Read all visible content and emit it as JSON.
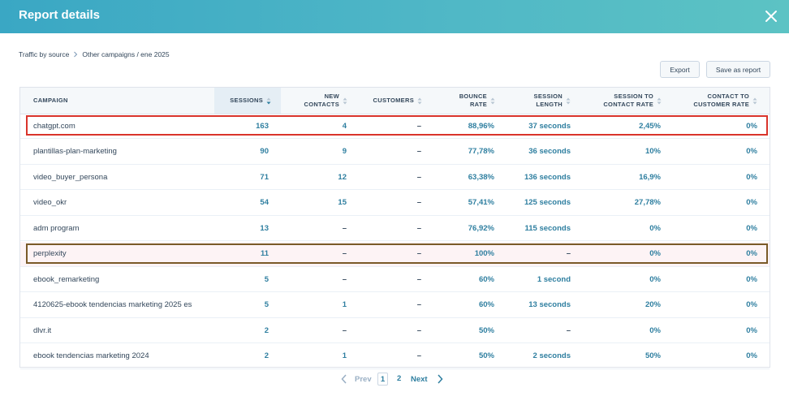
{
  "header": {
    "title": "Report details"
  },
  "breadcrumb": {
    "items": [
      "Traffic by source",
      "Other campaigns / ene 2025"
    ]
  },
  "toolbar": {
    "export_label": "Export",
    "save_label": "Save as report"
  },
  "table": {
    "columns": [
      {
        "key": "campaign",
        "label": "CAMPAIGN"
      },
      {
        "key": "sessions",
        "label": "SESSIONS"
      },
      {
        "key": "new_contacts",
        "label": "NEW CONTACTS"
      },
      {
        "key": "customers",
        "label": "CUSTOMERS"
      },
      {
        "key": "bounce_rate",
        "label": "BOUNCE RATE"
      },
      {
        "key": "session_length",
        "label": "SESSION LENGTH"
      },
      {
        "key": "session_to_contact",
        "label": "SESSION TO CONTACT RATE"
      },
      {
        "key": "contact_to_customer",
        "label": "CONTACT TO CUSTOMER RATE"
      }
    ],
    "sorted_column": "sessions",
    "rows": [
      [
        "chatgpt.com",
        "163",
        "4",
        "–",
        "88,96%",
        "37 seconds",
        "2,45%",
        "0%"
      ],
      [
        "plantillas-plan-marketing",
        "90",
        "9",
        "–",
        "77,78%",
        "36 seconds",
        "10%",
        "0%"
      ],
      [
        "video_buyer_persona",
        "71",
        "12",
        "–",
        "63,38%",
        "136 seconds",
        "16,9%",
        "0%"
      ],
      [
        "video_okr",
        "54",
        "15",
        "–",
        "57,41%",
        "125 seconds",
        "27,78%",
        "0%"
      ],
      [
        "adm program",
        "13",
        "–",
        "–",
        "76,92%",
        "115 seconds",
        "0%",
        "0%"
      ],
      [
        "perplexity",
        "11",
        "–",
        "–",
        "100%",
        "–",
        "0%",
        "0%"
      ],
      [
        "ebook_remarketing",
        "5",
        "–",
        "–",
        "60%",
        "1 second",
        "0%",
        "0%"
      ],
      [
        "4120625-ebook tendencias marketing 2025 es",
        "5",
        "1",
        "–",
        "60%",
        "13 seconds",
        "20%",
        "0%"
      ],
      [
        "dlvr.it",
        "2",
        "–",
        "–",
        "50%",
        "–",
        "0%",
        "0%"
      ],
      [
        "ebook tendencias marketing 2024",
        "2",
        "1",
        "–",
        "50%",
        "2 seconds",
        "50%",
        "0%"
      ]
    ],
    "highlighted_rows": [
      {
        "campaign": "chatgpt.com",
        "color": "#d9342b"
      },
      {
        "campaign": "perplexity",
        "color": "#7a5a28"
      }
    ]
  },
  "pagination": {
    "prev_label": "Prev",
    "current_page": "1",
    "next_page": "2",
    "next_label": "Next"
  },
  "colors": {
    "header_gradient_start": "#3aa7c4",
    "header_gradient_end": "#5cc3c4",
    "link": "#2f7fa0",
    "text": "#33475b"
  }
}
